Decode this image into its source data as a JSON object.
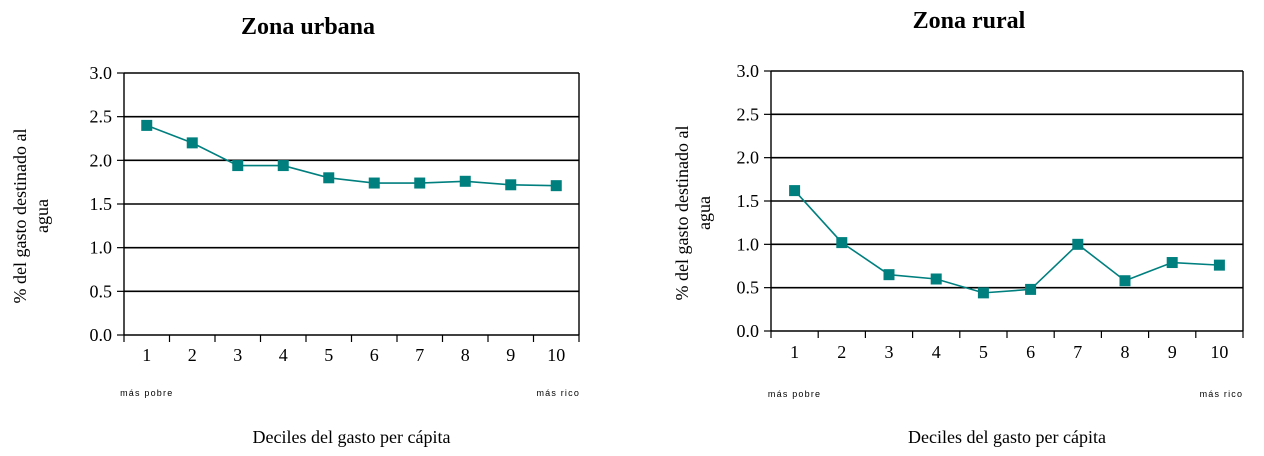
{
  "chart_data": [
    {
      "type": "line",
      "title": "Zona urbana",
      "xlabel": "Deciles del gasto per cápita",
      "ylabel": "% del gasto destinado al agua",
      "categories": [
        "1",
        "2",
        "3",
        "4",
        "5",
        "6",
        "7",
        "8",
        "9",
        "10"
      ],
      "category_notes": {
        "first": "más pobre",
        "last": "más rico"
      },
      "ylim": [
        0,
        3.0
      ],
      "yticks": [
        "0.0",
        "0.5",
        "1.0",
        "1.5",
        "2.0",
        "2.5",
        "3.0"
      ],
      "grid": true,
      "series": [
        {
          "values": [
            2.4,
            2.2,
            1.94,
            1.94,
            1.8,
            1.74,
            1.74,
            1.76,
            1.72,
            1.71
          ],
          "color": "#007f7f"
        }
      ]
    },
    {
      "type": "line",
      "title": "Zona rural",
      "xlabel": "Deciles del gasto per cápita",
      "ylabel": "% del gasto destinado al agua",
      "categories": [
        "1",
        "2",
        "3",
        "4",
        "5",
        "6",
        "7",
        "8",
        "9",
        "10"
      ],
      "category_notes": {
        "first": "más pobre",
        "last": "más rico"
      },
      "ylim": [
        0,
        3.0
      ],
      "yticks": [
        "0.0",
        "0.5",
        "1.0",
        "1.5",
        "2.0",
        "2.5",
        "3.0"
      ],
      "grid": true,
      "series": [
        {
          "values": [
            1.62,
            1.02,
            0.65,
            0.6,
            0.44,
            0.48,
            1.0,
            0.58,
            0.79,
            0.76
          ],
          "color": "#007f7f"
        }
      ]
    }
  ]
}
